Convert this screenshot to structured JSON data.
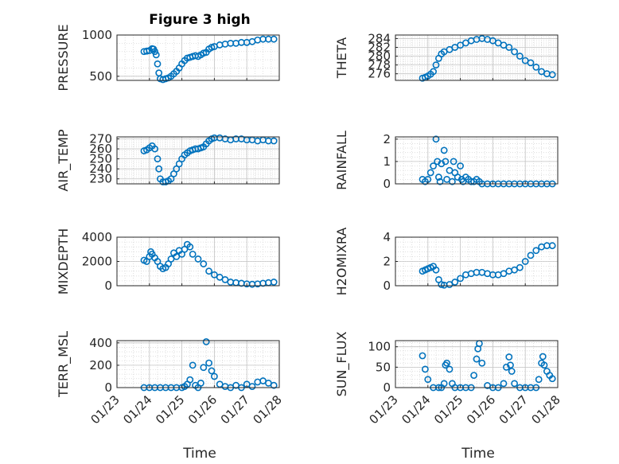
{
  "figure": {
    "title": "Figure 3 high",
    "marker_color": "#0072BD"
  },
  "chart_data": [
    {
      "type": "scatter",
      "id": "pressure",
      "ylabel": "PRESSURE",
      "ylim": [
        450,
        1000
      ],
      "yticks": [
        500,
        1000
      ],
      "x": [
        "01/23 20:00",
        "01/23 22:00",
        "01/24 00:00",
        "01/24 02:00",
        "01/24 03:00",
        "01/24 04:00",
        "01/24 05:00",
        "01/24 06:00",
        "01/24 07:00",
        "01/24 08:00",
        "01/24 10:00",
        "01/24 12:00",
        "01/24 14:00",
        "01/24 16:00",
        "01/24 18:00",
        "01/24 20:00",
        "01/24 22:00",
        "01/25 00:00",
        "01/25 02:00",
        "01/25 04:00",
        "01/25 06:00",
        "01/25 08:00",
        "01/25 10:00",
        "01/25 12:00",
        "01/25 14:00",
        "01/25 16:00",
        "01/25 18:00",
        "01/25 20:00",
        "01/25 22:00",
        "01/26 00:00",
        "01/26 04:00",
        "01/26 08:00",
        "01/26 12:00",
        "01/26 16:00",
        "01/26 20:00",
        "01/27 00:00",
        "01/27 04:00",
        "01/27 08:00",
        "01/27 12:00",
        "01/27 16:00",
        "01/27 20:00"
      ],
      "y": [
        800,
        805,
        812,
        835,
        830,
        800,
        760,
        650,
        540,
        470,
        460,
        470,
        480,
        500,
        530,
        560,
        600,
        650,
        690,
        720,
        730,
        740,
        750,
        740,
        760,
        780,
        790,
        830,
        850,
        860,
        880,
        890,
        900,
        900,
        910,
        910,
        920,
        940,
        950,
        950,
        950
      ]
    },
    {
      "type": "scatter",
      "id": "theta",
      "ylabel": "THETA",
      "ylim": [
        274.5,
        284.8
      ],
      "yticks": [
        276,
        278,
        280,
        282,
        284
      ],
      "x": [
        "01/23 20:00",
        "01/23 22:00",
        "01/24 00:00",
        "01/24 02:00",
        "01/24 04:00",
        "01/24 06:00",
        "01/24 08:00",
        "01/24 10:00",
        "01/24 12:00",
        "01/24 16:00",
        "01/24 20:00",
        "01/25 00:00",
        "01/25 04:00",
        "01/25 08:00",
        "01/25 12:00",
        "01/25 16:00",
        "01/25 20:00",
        "01/26 00:00",
        "01/26 04:00",
        "01/26 08:00",
        "01/26 12:00",
        "01/26 16:00",
        "01/26 20:00",
        "01/27 00:00",
        "01/27 04:00",
        "01/27 08:00",
        "01/27 12:00",
        "01/27 16:00",
        "01/27 20:00"
      ],
      "y": [
        275.0,
        275.2,
        275.5,
        275.9,
        276.5,
        278.0,
        279.5,
        280.5,
        281.0,
        281.5,
        282.0,
        282.5,
        283.0,
        283.5,
        283.8,
        284.0,
        283.8,
        283.5,
        283.0,
        282.5,
        282.0,
        281.0,
        280.0,
        279.0,
        278.5,
        277.5,
        276.5,
        276.0,
        275.8
      ]
    },
    {
      "type": "scatter",
      "id": "air_temp",
      "ylabel": "AIR_TEMP",
      "ylim": [
        225,
        272
      ],
      "yticks": [
        230,
        240,
        250,
        260,
        270
      ],
      "x": [
        "01/23 20:00",
        "01/23 22:00",
        "01/24 00:00",
        "01/24 02:00",
        "01/24 04:00",
        "01/24 06:00",
        "01/24 07:00",
        "01/24 08:00",
        "01/24 10:00",
        "01/24 12:00",
        "01/24 14:00",
        "01/24 16:00",
        "01/24 18:00",
        "01/24 20:00",
        "01/24 22:00",
        "01/25 00:00",
        "01/25 02:00",
        "01/25 04:00",
        "01/25 06:00",
        "01/25 08:00",
        "01/25 10:00",
        "01/25 12:00",
        "01/25 14:00",
        "01/25 16:00",
        "01/25 18:00",
        "01/25 20:00",
        "01/25 22:00",
        "01/26 00:00",
        "01/26 04:00",
        "01/26 08:00",
        "01/26 12:00",
        "01/26 16:00",
        "01/26 20:00",
        "01/27 00:00",
        "01/27 04:00",
        "01/27 08:00",
        "01/27 12:00",
        "01/27 16:00",
        "01/27 20:00"
      ],
      "y": [
        258,
        259,
        261,
        263,
        260,
        250,
        240,
        230,
        227,
        227,
        228,
        230,
        235,
        240,
        245,
        250,
        254,
        256,
        258,
        259,
        260,
        260,
        261,
        262,
        265,
        268,
        270,
        271,
        271,
        270,
        269,
        270,
        270,
        269,
        269,
        268,
        269,
        268,
        268
      ]
    },
    {
      "type": "scatter",
      "id": "rainfall",
      "ylabel": "RAINFALL",
      "ylim": [
        0,
        2.1
      ],
      "yticks": [
        0,
        1,
        2
      ],
      "x": [
        "01/23 20:00",
        "01/23 22:00",
        "01/24 00:00",
        "01/24 02:00",
        "01/24 04:00",
        "01/24 06:00",
        "01/24 07:00",
        "01/24 08:00",
        "01/24 09:00",
        "01/24 10:00",
        "01/24 12:00",
        "01/24 13:00",
        "01/24 14:00",
        "01/24 16:00",
        "01/24 18:00",
        "01/24 19:00",
        "01/24 20:00",
        "01/24 22:00",
        "01/25 00:00",
        "01/25 01:00",
        "01/25 02:00",
        "01/25 04:00",
        "01/25 06:00",
        "01/25 08:00",
        "01/25 10:00",
        "01/25 12:00",
        "01/25 14:00",
        "01/25 16:00",
        "01/25 20:00",
        "01/26 00:00",
        "01/26 04:00",
        "01/26 08:00",
        "01/26 12:00",
        "01/26 16:00",
        "01/26 20:00",
        "01/27 00:00",
        "01/27 04:00",
        "01/27 08:00",
        "01/27 12:00",
        "01/27 16:00",
        "01/27 20:00"
      ],
      "y": [
        0.2,
        0.1,
        0.2,
        0.5,
        0.8,
        2.0,
        1.0,
        0.3,
        0.1,
        0.9,
        1.5,
        1.0,
        0.2,
        0.6,
        0.1,
        1.0,
        0.5,
        0.3,
        0.8,
        0.2,
        0.1,
        0.3,
        0.2,
        0.1,
        0.1,
        0.2,
        0.1,
        0.0,
        0.0,
        0.0,
        0.0,
        0.0,
        0.0,
        0.0,
        0.0,
        0.0,
        0.0,
        0.0,
        0.0,
        0.0,
        0.0
      ]
    },
    {
      "type": "scatter",
      "id": "mixdepth",
      "ylabel": "MIXDEPTH",
      "ylim": [
        0,
        4000
      ],
      "yticks": [
        0,
        2000,
        4000
      ],
      "x": [
        "01/23 20:00",
        "01/23 22:00",
        "01/24 00:00",
        "01/24 01:00",
        "01/24 02:00",
        "01/24 04:00",
        "01/24 06:00",
        "01/24 08:00",
        "01/24 10:00",
        "01/24 12:00",
        "01/24 14:00",
        "01/24 16:00",
        "01/24 18:00",
        "01/24 20:00",
        "01/24 22:00",
        "01/25 00:00",
        "01/25 02:00",
        "01/25 04:00",
        "01/25 06:00",
        "01/25 08:00",
        "01/25 12:00",
        "01/25 16:00",
        "01/25 20:00",
        "01/26 00:00",
        "01/26 04:00",
        "01/26 08:00",
        "01/26 12:00",
        "01/26 16:00",
        "01/26 20:00",
        "01/27 00:00",
        "01/27 04:00",
        "01/27 08:00",
        "01/27 12:00",
        "01/27 16:00",
        "01/27 20:00"
      ],
      "y": [
        2100,
        2000,
        2400,
        2800,
        2600,
        2300,
        2000,
        1600,
        1400,
        1500,
        1800,
        2200,
        2700,
        2400,
        2900,
        2600,
        3000,
        3400,
        3200,
        2600,
        2200,
        1800,
        1200,
        900,
        700,
        500,
        300,
        250,
        200,
        150,
        120,
        150,
        200,
        250,
        300
      ]
    },
    {
      "type": "scatter",
      "id": "h2omixra",
      "ylabel": "H2OMIXRA",
      "ylim": [
        0,
        4
      ],
      "yticks": [
        0,
        2,
        4
      ],
      "x": [
        "01/23 20:00",
        "01/23 22:00",
        "01/24 00:00",
        "01/24 02:00",
        "01/24 04:00",
        "01/24 06:00",
        "01/24 08:00",
        "01/24 10:00",
        "01/24 12:00",
        "01/24 16:00",
        "01/24 20:00",
        "01/25 00:00",
        "01/25 04:00",
        "01/25 08:00",
        "01/25 12:00",
        "01/25 16:00",
        "01/25 20:00",
        "01/26 00:00",
        "01/26 04:00",
        "01/26 08:00",
        "01/26 12:00",
        "01/26 16:00",
        "01/26 20:00",
        "01/27 00:00",
        "01/27 04:00",
        "01/27 08:00",
        "01/27 12:00",
        "01/27 16:00",
        "01/27 20:00"
      ],
      "y": [
        1.2,
        1.3,
        1.4,
        1.5,
        1.6,
        1.3,
        0.5,
        0.1,
        0.05,
        0.1,
        0.3,
        0.6,
        0.9,
        1.0,
        1.1,
        1.1,
        1.0,
        0.9,
        0.9,
        1.0,
        1.2,
        1.3,
        1.5,
        2.0,
        2.5,
        2.9,
        3.2,
        3.3,
        3.3
      ]
    },
    {
      "type": "scatter",
      "id": "terr_msl",
      "ylabel": "TERR_MSL",
      "ylim": [
        0,
        420
      ],
      "yticks": [
        0,
        200,
        400
      ],
      "x": [
        "01/23 20:00",
        "01/24 00:00",
        "01/24 04:00",
        "01/24 08:00",
        "01/24 12:00",
        "01/24 16:00",
        "01/24 20:00",
        "01/25 00:00",
        "01/25 02:00",
        "01/25 04:00",
        "01/25 06:00",
        "01/25 08:00",
        "01/25 10:00",
        "01/25 12:00",
        "01/25 14:00",
        "01/25 16:00",
        "01/25 18:00",
        "01/25 20:00",
        "01/25 22:00",
        "01/26 00:00",
        "01/26 04:00",
        "01/26 08:00",
        "01/26 12:00",
        "01/26 16:00",
        "01/26 20:00",
        "01/27 00:00",
        "01/27 04:00",
        "01/27 08:00",
        "01/27 12:00",
        "01/27 16:00",
        "01/27 20:00"
      ],
      "y": [
        0,
        0,
        0,
        0,
        0,
        0,
        0,
        0,
        10,
        30,
        70,
        200,
        20,
        0,
        40,
        180,
        410,
        220,
        150,
        100,
        30,
        10,
        0,
        20,
        0,
        30,
        10,
        50,
        60,
        40,
        20
      ]
    },
    {
      "type": "scatter",
      "id": "sun_flux",
      "ylabel": "SUN_FLUX",
      "ylim": [
        0,
        115
      ],
      "yticks": [
        0,
        50,
        100
      ],
      "x": [
        "01/23 20:00",
        "01/23 22:00",
        "01/24 00:00",
        "01/24 04:00",
        "01/24 08:00",
        "01/24 10:00",
        "01/24 12:00",
        "01/24 13:00",
        "01/24 14:00",
        "01/24 16:00",
        "01/24 18:00",
        "01/24 20:00",
        "01/25 00:00",
        "01/25 04:00",
        "01/25 08:00",
        "01/25 10:00",
        "01/25 12:00",
        "01/25 13:00",
        "01/25 14:00",
        "01/25 16:00",
        "01/25 20:00",
        "01/26 00:00",
        "01/26 04:00",
        "01/26 08:00",
        "01/26 10:00",
        "01/26 12:00",
        "01/26 13:00",
        "01/26 14:00",
        "01/26 16:00",
        "01/26 20:00",
        "01/27 00:00",
        "01/27 04:00",
        "01/27 08:00",
        "01/27 10:00",
        "01/27 12:00",
        "01/27 13:00",
        "01/27 14:00",
        "01/27 16:00",
        "01/27 18:00",
        "01/27 20:00"
      ],
      "y": [
        78,
        45,
        20,
        0,
        0,
        0,
        10,
        55,
        60,
        45,
        10,
        0,
        0,
        0,
        0,
        30,
        70,
        95,
        108,
        60,
        5,
        0,
        0,
        10,
        50,
        75,
        55,
        40,
        10,
        0,
        0,
        0,
        0,
        20,
        60,
        76,
        55,
        40,
        30,
        22
      ]
    }
  ],
  "axes": {
    "x_ticks": [
      "01/23",
      "01/24",
      "01/25",
      "01/26",
      "01/27",
      "01/28"
    ],
    "xlabel": "Time"
  }
}
